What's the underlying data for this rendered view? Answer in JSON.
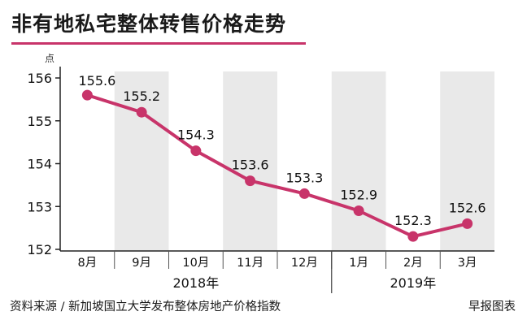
{
  "title": "非有地私宅整体转售价格走势",
  "source": "资料来源 / 新加坡国立大学发布整体房地产价格指数",
  "credit": "早报图表",
  "colors": {
    "line": "#c8346a",
    "band": "#e9e9e9",
    "axis": "#222222"
  },
  "chart_data": {
    "type": "line",
    "unit_label": "点",
    "categories": [
      "8月",
      "9月",
      "10月",
      "11月",
      "12月",
      "1月",
      "2月",
      "3月"
    ],
    "year_groups": [
      {
        "label": "2018年",
        "start": 0,
        "end": 4
      },
      {
        "label": "2019年",
        "start": 5,
        "end": 7
      }
    ],
    "values": [
      155.6,
      155.2,
      154.3,
      153.6,
      153.3,
      152.9,
      152.3,
      152.6
    ],
    "value_labels": [
      "155.6",
      "155.2",
      "154.3",
      "153.6",
      "153.3",
      "152.9",
      "152.3",
      "152.6"
    ],
    "ylim": [
      152,
      156
    ],
    "yticks": [
      152,
      153,
      154,
      155,
      156
    ],
    "ytick_labels": [
      "152",
      "153",
      "154",
      "155",
      "156"
    ],
    "shaded_categories": [
      1,
      3,
      5,
      7
    ],
    "grid": false,
    "legend": "none"
  }
}
